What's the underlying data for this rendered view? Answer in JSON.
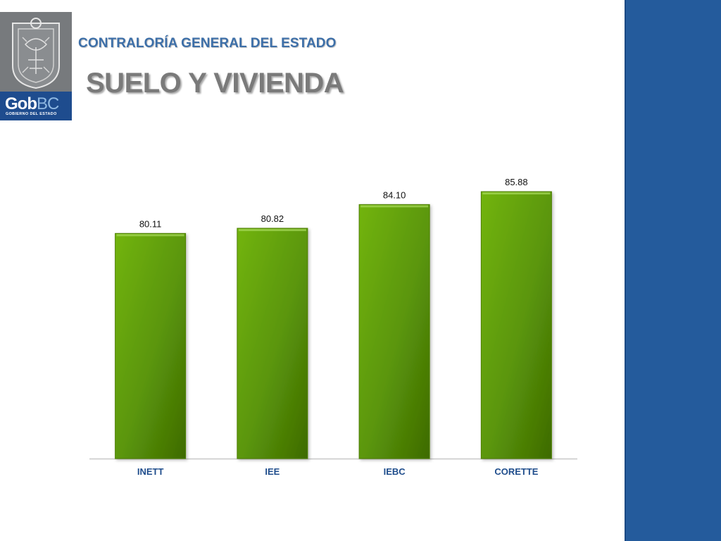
{
  "header": {
    "logo_text_main": "Gob",
    "logo_text_accent": "BC",
    "logo_subtext": "GOBIERNO DEL ESTADO",
    "org_name": "CONTRALORÍA GENERAL DEL ESTADO",
    "title": "SUELO Y VIVIENDA"
  },
  "colors": {
    "side_band": "#245b9c",
    "bar_green": "#5e9a0a",
    "category_label": "#1f4d8c",
    "brand_blue": "#1e4c8e"
  },
  "chart_data": {
    "type": "bar",
    "categories": [
      "INETT",
      "IEE",
      "IEBC",
      "CORETTE"
    ],
    "values": [
      80.11,
      80.82,
      84.1,
      85.88
    ],
    "value_labels": [
      "80.11",
      "80.82",
      "84.10",
      "85.88"
    ],
    "ylim": [
      49,
      89
    ],
    "grid": false,
    "legend": "none",
    "title": "",
    "xlabel": "",
    "ylabel": ""
  }
}
